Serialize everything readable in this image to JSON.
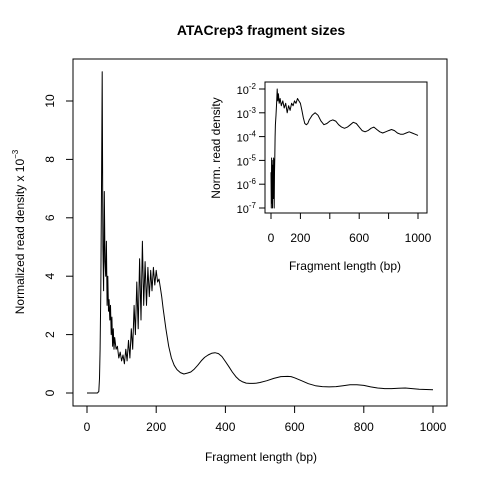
{
  "chart_data": [
    {
      "type": "line",
      "title": "ATACrep3 fragment sizes",
      "xlabel": "Fragment length (bp)",
      "ylabel": "Normalized read density x 10",
      "ylabel_exponent": "−3",
      "xlim": [
        0,
        1000
      ],
      "ylim": [
        0,
        11
      ],
      "xticks": [
        0,
        200,
        400,
        600,
        800,
        1000
      ],
      "yticks": [
        0,
        2,
        4,
        6,
        8,
        10
      ],
      "series": [
        {
          "x": [
            0,
            30,
            34,
            36,
            38,
            40,
            42,
            44,
            46,
            48,
            50,
            52,
            54,
            56,
            58,
            60,
            62,
            64,
            66,
            68,
            70,
            72,
            74,
            76,
            78,
            80,
            84,
            88,
            92,
            96,
            100,
            104,
            108,
            112,
            116,
            120,
            124,
            128,
            132,
            136,
            140,
            144,
            148,
            152,
            156,
            160,
            164,
            168,
            172,
            176,
            180,
            184,
            188,
            192,
            196,
            200,
            204,
            208,
            212,
            216,
            220,
            228,
            236,
            244,
            252,
            260,
            270,
            280,
            290,
            300,
            310,
            320,
            330,
            340,
            350,
            360,
            370,
            380,
            390,
            400,
            410,
            420,
            430,
            440,
            450,
            460,
            470,
            480,
            490,
            500,
            520,
            540,
            560,
            580,
            590,
            600,
            620,
            640,
            660,
            680,
            700,
            720,
            740,
            760,
            780,
            800,
            820,
            840,
            860,
            880,
            900,
            920,
            940,
            960,
            980,
            1000
          ],
          "y": [
            0.0,
            0.0,
            0.05,
            0.5,
            1.5,
            3.5,
            7.0,
            11.0,
            5.0,
            3.5,
            6.9,
            4.5,
            4.0,
            5.2,
            3.0,
            4.0,
            2.8,
            3.2,
            2.5,
            3.0,
            2.0,
            2.6,
            1.6,
            2.2,
            1.5,
            1.9,
            1.5,
            1.6,
            1.2,
            1.4,
            1.1,
            1.3,
            1.0,
            1.5,
            1.1,
            1.8,
            1.2,
            2.2,
            1.5,
            3.0,
            2.0,
            3.8,
            2.2,
            4.6,
            2.5,
            5.2,
            3.0,
            4.5,
            3.0,
            4.3,
            3.3,
            4.2,
            3.5,
            4.3,
            3.7,
            4.2,
            3.8,
            3.9,
            3.6,
            3.3,
            2.9,
            2.2,
            1.6,
            1.2,
            0.95,
            0.8,
            0.7,
            0.65,
            0.68,
            0.72,
            0.82,
            0.95,
            1.1,
            1.22,
            1.3,
            1.36,
            1.38,
            1.35,
            1.25,
            1.08,
            0.9,
            0.72,
            0.56,
            0.45,
            0.38,
            0.34,
            0.33,
            0.33,
            0.34,
            0.36,
            0.42,
            0.5,
            0.56,
            0.57,
            0.56,
            0.52,
            0.42,
            0.32,
            0.25,
            0.22,
            0.21,
            0.22,
            0.25,
            0.28,
            0.28,
            0.26,
            0.21,
            0.17,
            0.15,
            0.15,
            0.16,
            0.17,
            0.15,
            0.13,
            0.12,
            0.11
          ]
        }
      ]
    },
    {
      "type": "line",
      "xlabel": "Fragment length (bp)",
      "ylabel": "Norm. read density",
      "scale": "log",
      "xlim": [
        0,
        1000
      ],
      "ylim_log10": [
        -7,
        -2
      ],
      "xticks": [
        0,
        200,
        600,
        1000
      ],
      "xticks_minor": [
        400,
        800
      ],
      "yticks": [
        {
          "base": "10",
          "exp": "-7"
        },
        {
          "base": "10",
          "exp": "-6"
        },
        {
          "base": "10",
          "exp": "-5"
        },
        {
          "base": "10",
          "exp": "-4"
        },
        {
          "base": "10",
          "exp": "-3"
        },
        {
          "base": "10",
          "exp": "-2"
        }
      ],
      "series": [
        {
          "x": [
            0,
            2,
            4,
            6,
            8,
            10,
            12,
            14,
            16,
            18,
            20,
            22,
            24,
            26,
            28,
            30,
            34,
            38,
            42,
            46,
            50,
            56,
            62,
            70,
            80,
            90,
            100,
            110,
            120,
            130,
            140,
            150,
            160,
            170,
            180,
            190,
            200,
            210,
            220,
            230,
            240,
            250,
            260,
            270,
            280,
            290,
            300,
            320,
            340,
            360,
            380,
            400,
            420,
            440,
            460,
            480,
            500,
            520,
            540,
            560,
            580,
            600,
            620,
            640,
            660,
            680,
            700,
            720,
            740,
            760,
            780,
            800,
            820,
            840,
            860,
            880,
            900,
            920,
            940,
            960,
            980,
            1000
          ],
          "log10y": [
            -5.5,
            -7.0,
            -4.9,
            -6.8,
            -5.0,
            -7.0,
            -5.2,
            -6.0,
            -6.6,
            -4.9,
            -5.0,
            -7.0,
            -5.5,
            -4.9,
            -4.0,
            -3.5,
            -3.1,
            -2.6,
            -2.0,
            -2.5,
            -2.2,
            -2.6,
            -2.4,
            -2.7,
            -2.5,
            -2.8,
            -2.6,
            -3.0,
            -2.7,
            -2.9,
            -2.6,
            -2.7,
            -2.5,
            -2.6,
            -2.4,
            -2.5,
            -2.6,
            -2.9,
            -3.2,
            -3.45,
            -3.5,
            -3.45,
            -3.3,
            -3.2,
            -3.1,
            -3.05,
            -3.0,
            -3.1,
            -3.35,
            -3.5,
            -3.45,
            -3.35,
            -3.3,
            -3.35,
            -3.5,
            -3.6,
            -3.65,
            -3.6,
            -3.5,
            -3.4,
            -3.45,
            -3.6,
            -3.75,
            -3.8,
            -3.75,
            -3.65,
            -3.6,
            -3.7,
            -3.8,
            -3.85,
            -3.8,
            -3.75,
            -3.7,
            -3.75,
            -3.85,
            -3.9,
            -3.9,
            -3.85,
            -3.8,
            -3.85,
            -3.9,
            -3.95
          ]
        }
      ]
    }
  ]
}
